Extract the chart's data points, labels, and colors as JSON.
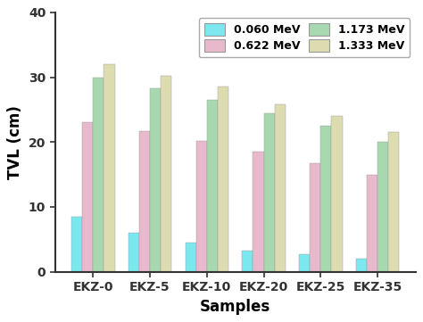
{
  "categories": [
    "EKZ-0",
    "EKZ-5",
    "EKZ-10",
    "EKZ-20",
    "EKZ-25",
    "EKZ-35"
  ],
  "series": {
    "0.060 MeV": [
      8.5,
      6.0,
      4.5,
      3.2,
      2.7,
      2.0
    ],
    "0.622 MeV": [
      23.0,
      21.7,
      20.2,
      18.5,
      16.8,
      15.0
    ],
    "1.173 MeV": [
      30.0,
      28.3,
      26.5,
      24.5,
      22.5,
      20.0
    ],
    "1.333 MeV": [
      32.0,
      30.2,
      28.5,
      25.8,
      24.0,
      21.5
    ]
  },
  "plot_order": [
    "0.060 MeV",
    "0.622 MeV",
    "1.173 MeV",
    "1.333 MeV"
  ],
  "colors": {
    "0.060 MeV": "#7BE8F0",
    "0.622 MeV": "#E8B8CC",
    "1.173 MeV": "#A8D8B0",
    "1.333 MeV": "#DCDCB0"
  },
  "legend_order_row_major": [
    "0.060 MeV",
    "0.622 MeV",
    "1.173 MeV",
    "1.333 MeV"
  ],
  "xlabel": "Samples",
  "ylabel": "TVL (cm)",
  "ylim": [
    0,
    40
  ],
  "yticks": [
    0,
    10,
    20,
    30,
    40
  ],
  "background_color": "#ffffff",
  "bar_edge_color": "#999999",
  "bar_edge_width": 0.3,
  "bar_width": 0.19,
  "xlabel_fontsize": 12,
  "ylabel_fontsize": 12,
  "tick_fontsize": 10,
  "legend_fontsize": 9,
  "spine_color": "#333333",
  "spine_linewidth": 1.5
}
